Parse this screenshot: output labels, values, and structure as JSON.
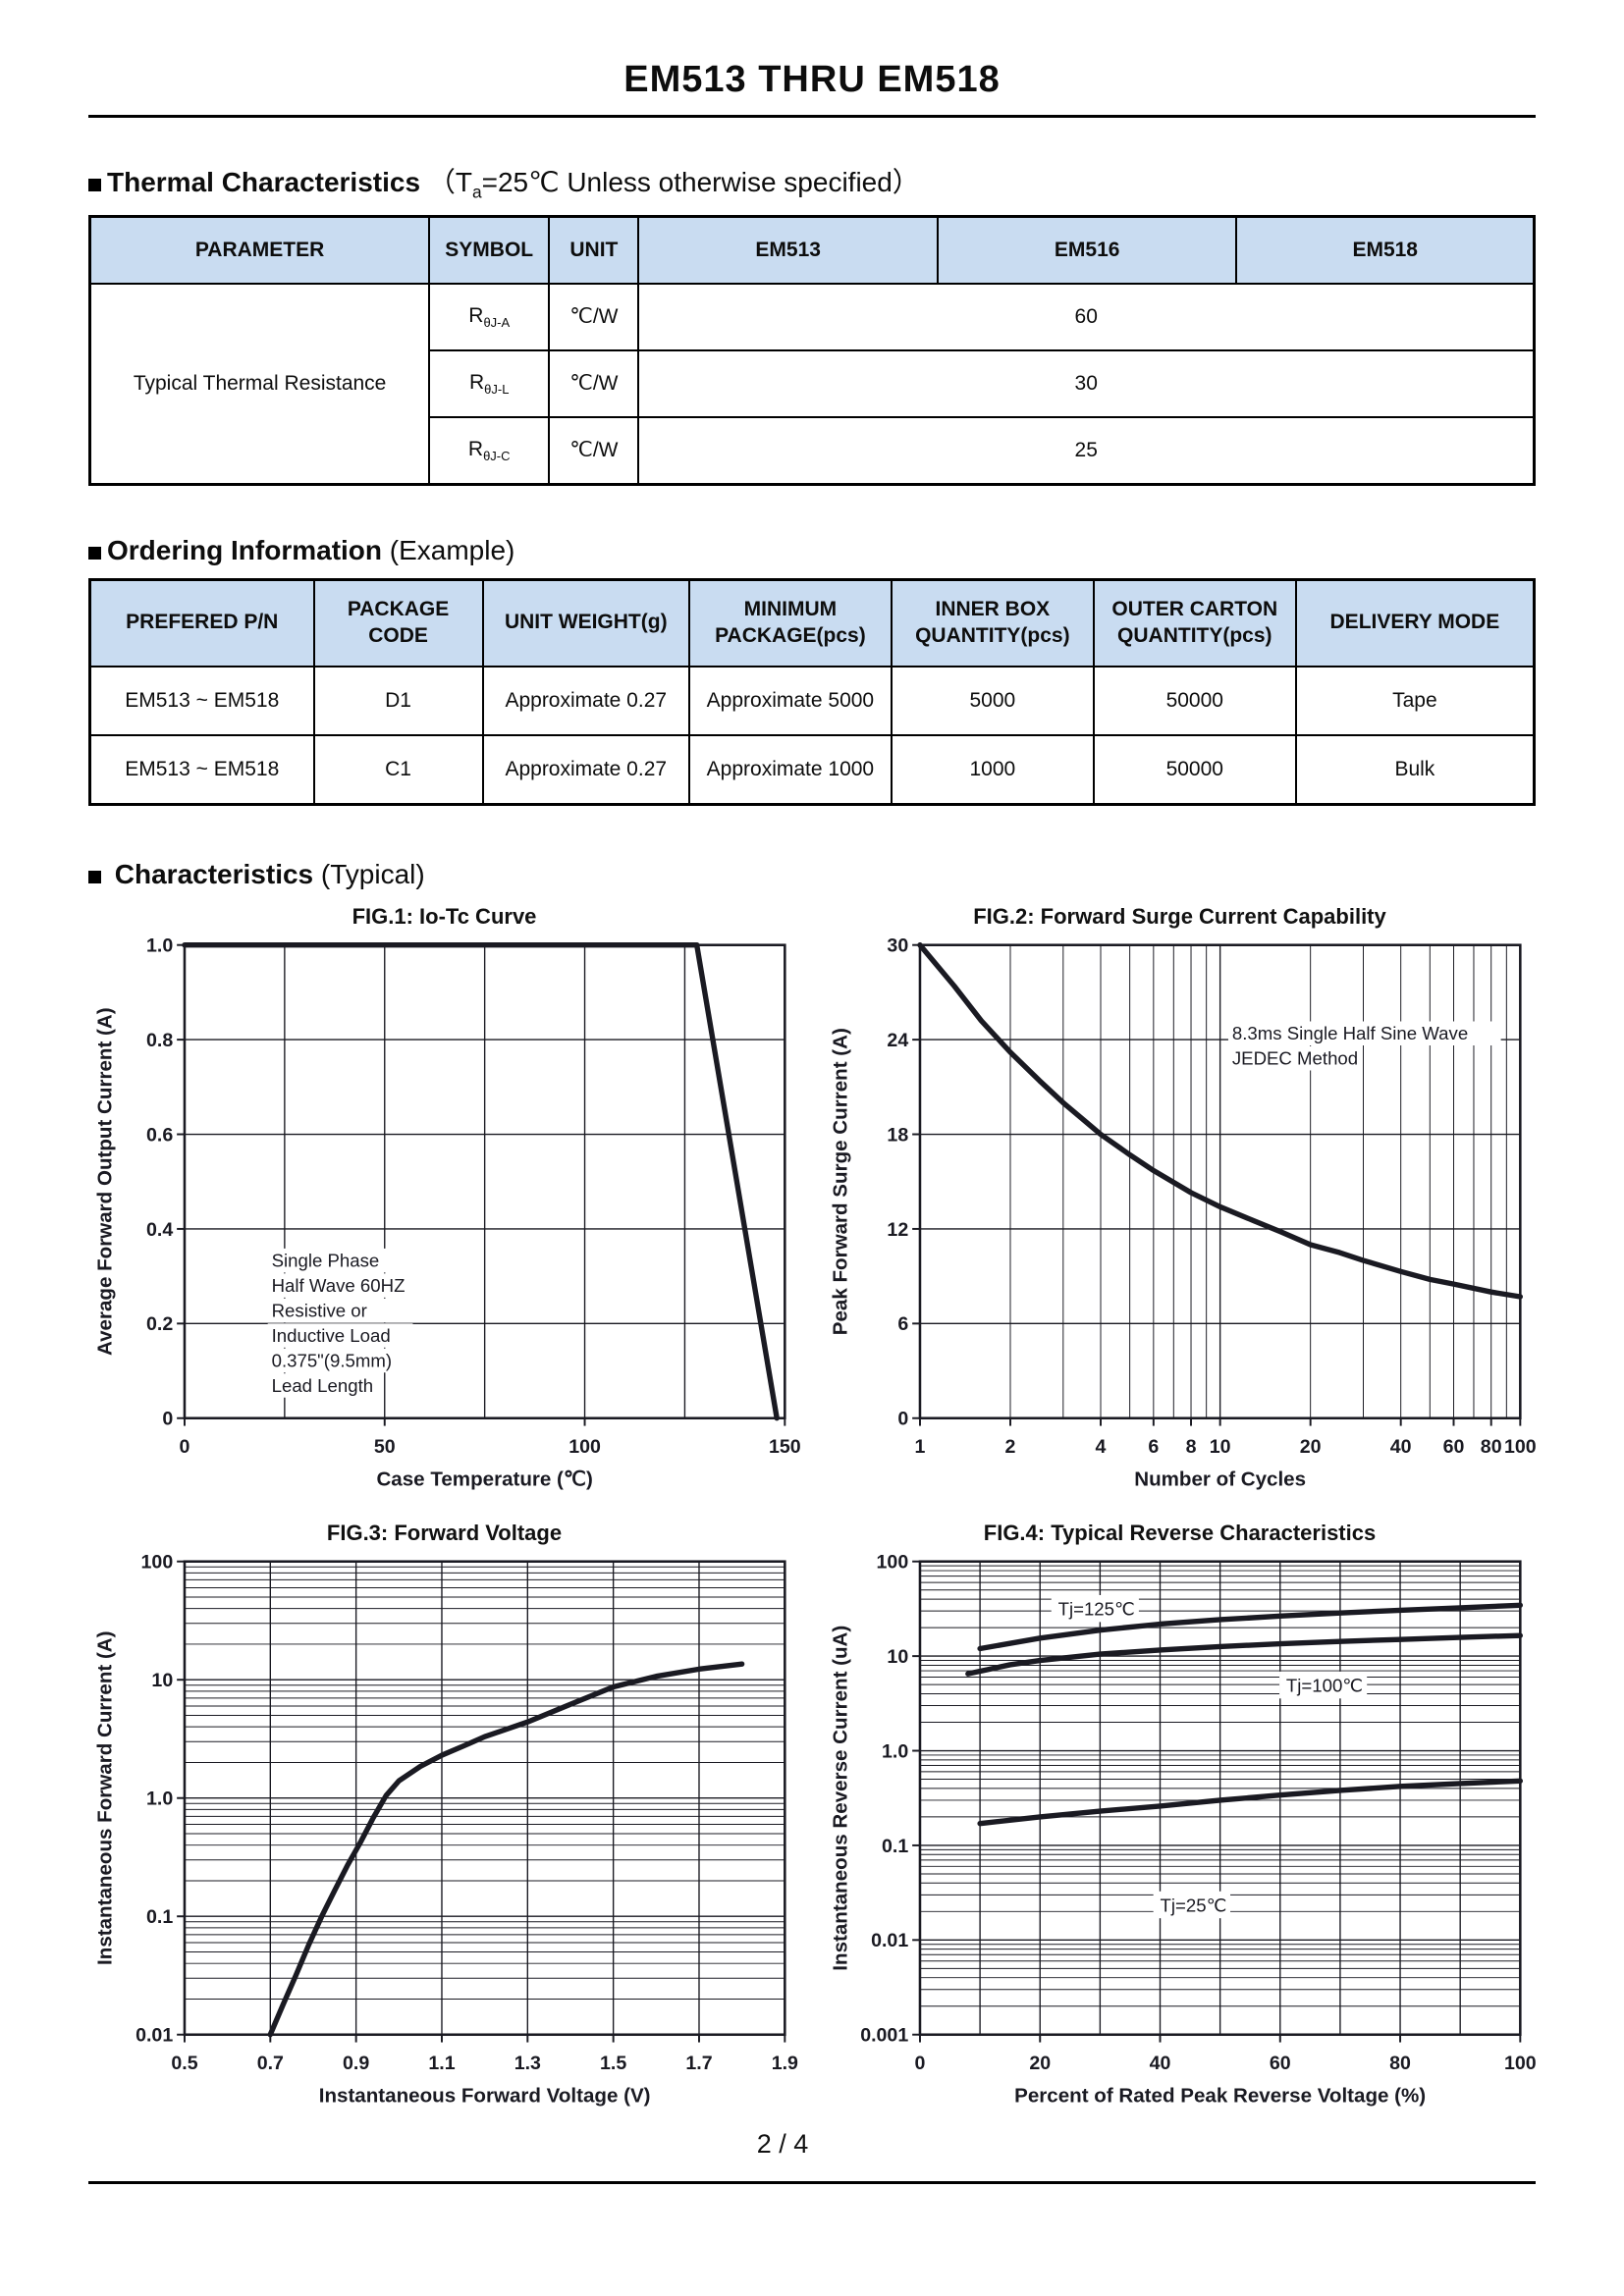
{
  "page": {
    "title": "EM513 THRU EM518",
    "page_number": "2 / 4"
  },
  "sections": {
    "thermal": {
      "heading": "Thermal Characteristics",
      "cond_pre": "（T",
      "cond_sub": "a",
      "cond_post": "=25℃ Unless otherwise specified）",
      "table": {
        "headers": [
          "PARAMETER",
          "SYMBOL",
          "UNIT",
          "EM513",
          "EM516",
          "EM518"
        ],
        "parameter": "Typical Thermal Resistance",
        "rows": [
          {
            "sym": "R",
            "sub": "θJ-A",
            "unit": "℃/W",
            "value": "60"
          },
          {
            "sym": "R",
            "sub": "θJ-L",
            "unit": "℃/W",
            "value": "30"
          },
          {
            "sym": "R",
            "sub": "θJ-C",
            "unit": "℃/W",
            "value": "25"
          }
        ]
      }
    },
    "ordering": {
      "heading": "Ordering Information",
      "heading_suffix": " (Example)",
      "table": {
        "headers": [
          "PREFERED P/N",
          "PACKAGE\nCODE",
          "UNIT WEIGHT(g)",
          "MINIMUM\nPACKAGE(pcs)",
          "INNER BOX\nQUANTITY(pcs)",
          "OUTER CARTON\nQUANTITY(pcs)",
          "DELIVERY MODE"
        ],
        "rows": [
          [
            "EM513 ~ EM518",
            "D1",
            "Approximate 0.27",
            "Approximate 5000",
            "5000",
            "50000",
            "Tape"
          ],
          [
            "EM513 ~ EM518",
            "C1",
            "Approximate 0.27",
            "Approximate 1000",
            "1000",
            "50000",
            "Bulk"
          ]
        ]
      }
    },
    "characteristics": {
      "heading": "Characteristics",
      "heading_suffix": " (Typical)"
    }
  },
  "chart_data": [
    {
      "type": "line",
      "title": "FIG.1: Io-Tc Curve",
      "xlabel": "Case Temperature (℃)",
      "ylabel": "Average Forward Output Current (A)",
      "xscale": "linear",
      "yscale": "linear",
      "xlim": [
        0,
        150
      ],
      "ylim": [
        0,
        1
      ],
      "xgrid_step": 25,
      "ygrid_step": 0.2,
      "xticks": [
        [
          0,
          "0"
        ],
        [
          50,
          "50"
        ],
        [
          100,
          "100"
        ],
        [
          150,
          "150"
        ]
      ],
      "yticks": [
        [
          0,
          "0"
        ],
        [
          0.2,
          "0.2"
        ],
        [
          0.4,
          "0.4"
        ],
        [
          0.6,
          "0.6"
        ],
        [
          0.8,
          "0.8"
        ],
        [
          1,
          "1.0"
        ]
      ],
      "series": [
        {
          "name": "Io vs Tc",
          "points": [
            [
              0,
              1
            ],
            [
              128,
              1
            ],
            [
              148,
              0
            ]
          ]
        }
      ],
      "note": {
        "lines": [
          "Single Phase",
          "Half Wave 60HZ",
          "Resistive or",
          "Inductive Load",
          "0.375\"(9.5mm)",
          "Lead Length"
        ],
        "fx": 0.145,
        "fy": 0.68
      }
    },
    {
      "type": "line",
      "title": "FIG.2: Forward Surge Current Capability",
      "xlabel": "Number of Cycles",
      "ylabel": "Peak Forward Surge Current (A)",
      "xscale": "log",
      "yscale": "linear",
      "xlim": [
        1,
        100
      ],
      "ylim": [
        0,
        30
      ],
      "ygrid_step": 6,
      "xticks": [
        [
          1,
          "1"
        ],
        [
          2,
          "2"
        ],
        [
          4,
          "4"
        ],
        [
          6,
          "6"
        ],
        [
          8,
          "8"
        ],
        [
          10,
          "10"
        ],
        [
          20,
          "20"
        ],
        [
          40,
          "40"
        ],
        [
          60,
          "60"
        ],
        [
          80,
          "80"
        ],
        [
          100,
          "100"
        ]
      ],
      "yticks": [
        [
          0,
          "0"
        ],
        [
          6,
          "6"
        ],
        [
          12,
          "12"
        ],
        [
          18,
          "18"
        ],
        [
          24,
          "24"
        ],
        [
          30,
          "30"
        ]
      ],
      "series": [
        {
          "name": "surge",
          "points": [
            [
              1,
              30
            ],
            [
              1.3,
              27.4
            ],
            [
              1.6,
              25.2
            ],
            [
              2,
              23.2
            ],
            [
              2.5,
              21.4
            ],
            [
              3,
              20
            ],
            [
              4,
              18
            ],
            [
              5,
              16.7
            ],
            [
              6,
              15.7
            ],
            [
              8,
              14.3
            ],
            [
              10,
              13.4
            ],
            [
              13,
              12.5
            ],
            [
              16,
              11.8
            ],
            [
              20,
              11
            ],
            [
              25,
              10.5
            ],
            [
              30,
              10
            ],
            [
              40,
              9.3
            ],
            [
              50,
              8.8
            ],
            [
              60,
              8.5
            ],
            [
              80,
              8
            ],
            [
              100,
              7.7
            ]
          ]
        }
      ],
      "note": {
        "lines": [
          "8.3ms Single Half Sine Wave",
          "JEDEC Method"
        ],
        "fx": 0.52,
        "fy": 0.2
      }
    },
    {
      "type": "line",
      "title": "FIG.3: Forward Voltage",
      "xlabel": "Instantaneous Forward Voltage (V)",
      "ylabel": "Instantaneous Forward Current (A)",
      "xscale": "linear",
      "yscale": "log",
      "xlim": [
        0.5,
        1.9
      ],
      "ylim": [
        0.01,
        100
      ],
      "xgrid_step": 0.2,
      "xticks": [
        [
          0.5,
          "0.5"
        ],
        [
          0.7,
          "0.7"
        ],
        [
          0.9,
          "0.9"
        ],
        [
          1.1,
          "1.1"
        ],
        [
          1.3,
          "1.3"
        ],
        [
          1.5,
          "1.5"
        ],
        [
          1.7,
          "1.7"
        ],
        [
          1.9,
          "1.9"
        ]
      ],
      "yticks": [
        [
          0.01,
          "0.01"
        ],
        [
          0.1,
          "0.1"
        ],
        [
          1,
          "1.0"
        ],
        [
          10,
          "10"
        ],
        [
          100,
          "100"
        ]
      ],
      "series": [
        {
          "name": "VF-IF",
          "points": [
            [
              0.7,
              0.01
            ],
            [
              0.73,
              0.018
            ],
            [
              0.76,
              0.032
            ],
            [
              0.79,
              0.058
            ],
            [
              0.82,
              0.1
            ],
            [
              0.85,
              0.165
            ],
            [
              0.88,
              0.27
            ],
            [
              0.91,
              0.42
            ],
            [
              0.94,
              0.68
            ],
            [
              0.97,
              1.05
            ],
            [
              1,
              1.4
            ],
            [
              1.05,
              1.85
            ],
            [
              1.1,
              2.3
            ],
            [
              1.15,
              2.75
            ],
            [
              1.2,
              3.3
            ],
            [
              1.3,
              4.4
            ],
            [
              1.4,
              6.2
            ],
            [
              1.5,
              8.7
            ],
            [
              1.6,
              10.7
            ],
            [
              1.7,
              12.3
            ],
            [
              1.8,
              13.6
            ]
          ]
        }
      ]
    },
    {
      "type": "line",
      "title": "FIG.4: Typical Reverse Characteristics",
      "xlabel": "Percent of Rated Peak Reverse Voltage (%)",
      "ylabel": "Instantaneous Reverse Current (uA)",
      "xscale": "linear",
      "yscale": "log",
      "xlim": [
        0,
        100
      ],
      "ylim": [
        0.001,
        100
      ],
      "xgrid_step": 10,
      "xticks": [
        [
          0,
          "0"
        ],
        [
          20,
          "20"
        ],
        [
          40,
          "40"
        ],
        [
          60,
          "60"
        ],
        [
          80,
          "80"
        ],
        [
          100,
          "100"
        ]
      ],
      "yticks": [
        [
          0.001,
          "0.001"
        ],
        [
          0.01,
          "0.01"
        ],
        [
          0.1,
          "0.1"
        ],
        [
          1,
          "1.0"
        ],
        [
          10,
          "10"
        ],
        [
          100,
          "100"
        ]
      ],
      "series": [
        {
          "name": "Tj=125℃",
          "points": [
            [
              10,
              12
            ],
            [
              20,
              15.5
            ],
            [
              30,
              18.8
            ],
            [
              40,
              21.8
            ],
            [
              50,
              24.3
            ],
            [
              60,
              26.5
            ],
            [
              70,
              28.6
            ],
            [
              80,
              30.5
            ],
            [
              90,
              32.4
            ],
            [
              100,
              34.5
            ]
          ],
          "label_at": [
            23,
            27
          ]
        },
        {
          "name": "Tj=100℃",
          "points": [
            [
              8,
              6.5
            ],
            [
              15,
              8.1
            ],
            [
              20,
              9
            ],
            [
              30,
              10.5
            ],
            [
              40,
              11.6
            ],
            [
              50,
              12.6
            ],
            [
              60,
              13.5
            ],
            [
              70,
              14.3
            ],
            [
              80,
              15
            ],
            [
              90,
              15.8
            ],
            [
              100,
              16.5
            ]
          ],
          "label_at": [
            61,
            4.2
          ]
        },
        {
          "name": "Tj=25℃",
          "points": [
            [
              10,
              0.17
            ],
            [
              20,
              0.2
            ],
            [
              30,
              0.23
            ],
            [
              40,
              0.26
            ],
            [
              50,
              0.3
            ],
            [
              60,
              0.34
            ],
            [
              70,
              0.38
            ],
            [
              80,
              0.42
            ],
            [
              90,
              0.45
            ],
            [
              100,
              0.48
            ]
          ],
          "label_at": [
            40,
            0.02
          ]
        }
      ]
    }
  ]
}
